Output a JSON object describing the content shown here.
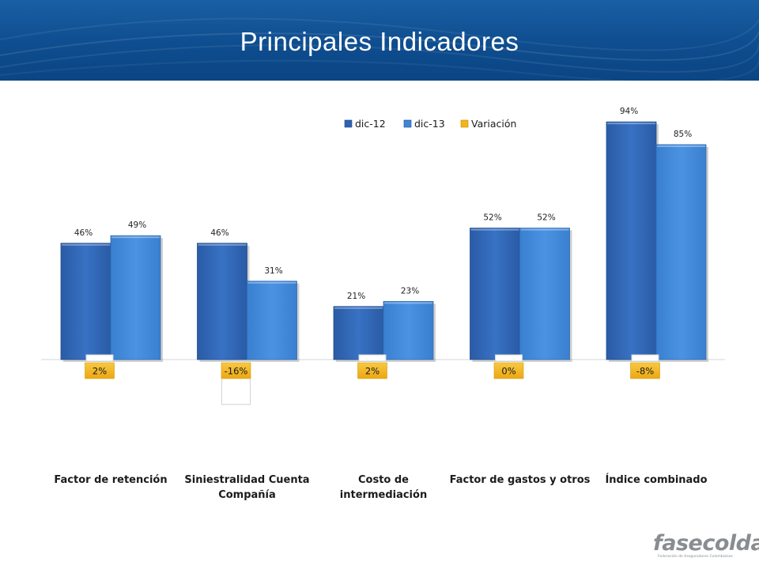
{
  "slide": {
    "title": "Principales Indicadores"
  },
  "logo": {
    "name": "fasecolda",
    "subtitle": "Federación de Aseguradores Colombianos"
  },
  "colors": {
    "header": "#0e4d8f",
    "dic12": "#2e63b0",
    "dic13": "#3f86d8",
    "variacion": "#f3b51b"
  },
  "chart_data": {
    "type": "bar",
    "categories": [
      [
        "Factor de retención"
      ],
      [
        "Siniestralidad Cuenta",
        "Compañía"
      ],
      [
        "Costo de",
        "intermediación"
      ],
      [
        "Factor de gastos y otros"
      ],
      [
        "Índice combinado"
      ]
    ],
    "series": [
      {
        "name": "dic-12",
        "values": [
          46,
          46,
          21,
          52,
          94
        ],
        "labels": [
          "46%",
          "46%",
          "21%",
          "52%",
          "94%"
        ]
      },
      {
        "name": "dic-13",
        "values": [
          49,
          31,
          23,
          52,
          85
        ],
        "labels": [
          "49%",
          "31%",
          "23%",
          "52%",
          "85%"
        ]
      },
      {
        "name": "Variación",
        "values": [
          2,
          -16,
          2,
          0,
          -8
        ],
        "labels": [
          "2%",
          "-16%",
          "2%",
          "0%",
          "-8%"
        ]
      }
    ],
    "ylim": [
      -20,
      100
    ],
    "grid": false,
    "legend": "top-right",
    "title": "",
    "xlabel": "",
    "ylabel": ""
  }
}
